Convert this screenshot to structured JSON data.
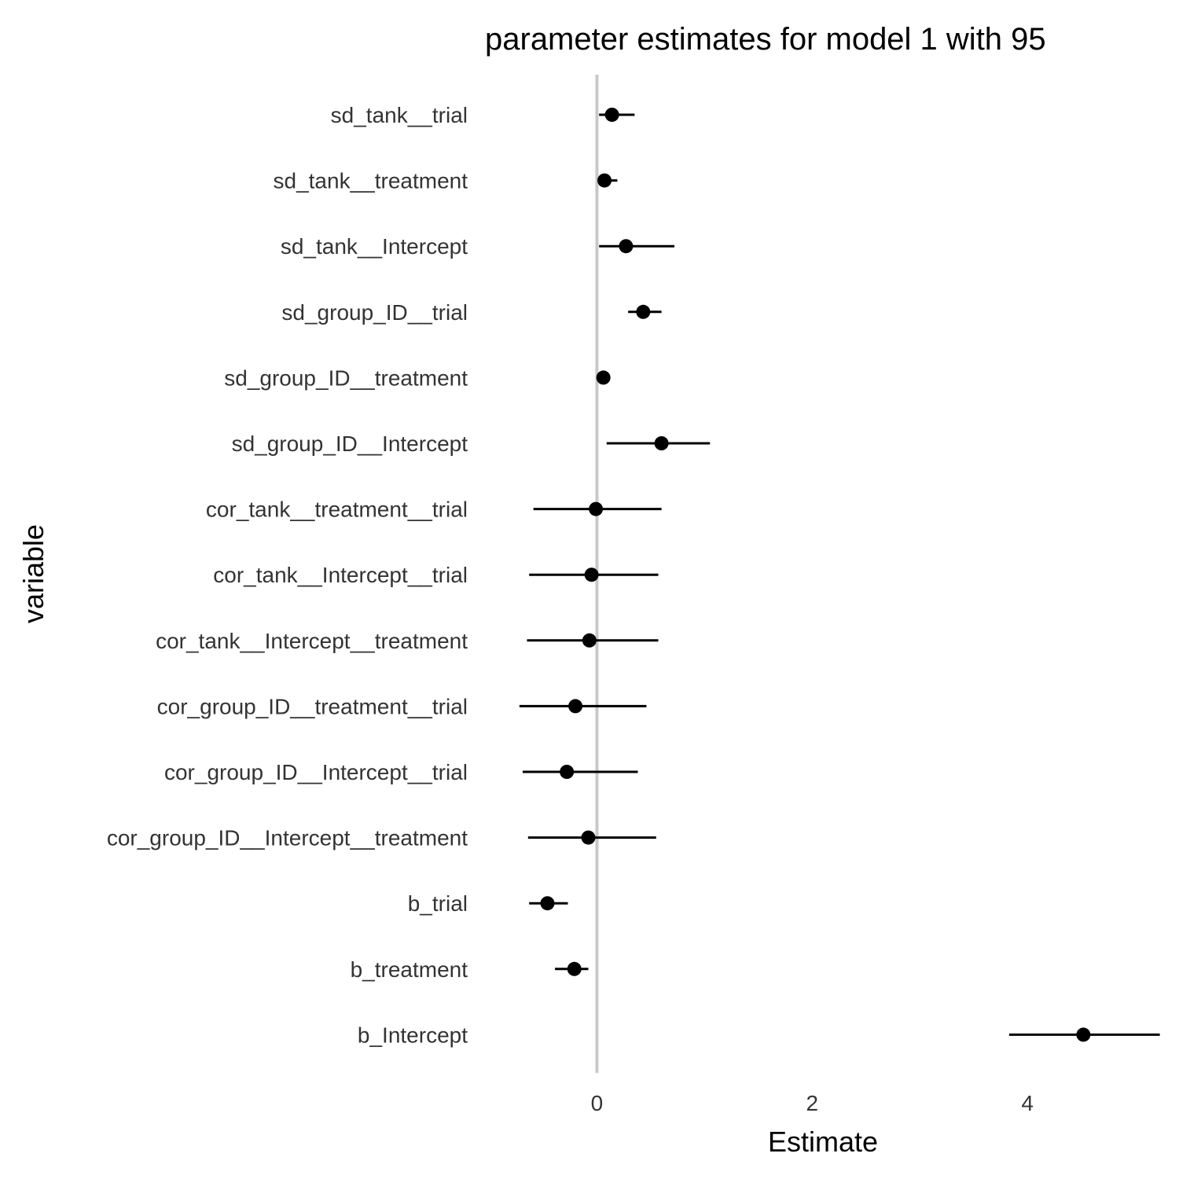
{
  "chart_data": {
    "type": "scatter",
    "title": "parameter estimates for model 1 with 95",
    "xlabel": "Estimate",
    "ylabel": "variable",
    "xlim": [
      -1.15,
      5.35
    ],
    "xticks": [
      0,
      2,
      4
    ],
    "reference_line": 0,
    "grid": false,
    "points": [
      {
        "label": "sd_tank__trial",
        "estimate": 0.14,
        "lower": 0.02,
        "upper": 0.35
      },
      {
        "label": "sd_tank__treatment",
        "estimate": 0.07,
        "lower": 0.01,
        "upper": 0.19
      },
      {
        "label": "sd_tank__Intercept",
        "estimate": 0.27,
        "lower": 0.02,
        "upper": 0.72
      },
      {
        "label": "sd_group_ID__trial",
        "estimate": 0.43,
        "lower": 0.29,
        "upper": 0.6
      },
      {
        "label": "sd_group_ID__treatment",
        "estimate": 0.06,
        "lower": 0.01,
        "upper": 0.12
      },
      {
        "label": "sd_group_ID__Intercept",
        "estimate": 0.6,
        "lower": 0.09,
        "upper": 1.05
      },
      {
        "label": "cor_tank__treatment__trial",
        "estimate": -0.01,
        "lower": -0.59,
        "upper": 0.6
      },
      {
        "label": "cor_tank__Intercept__trial",
        "estimate": -0.05,
        "lower": -0.63,
        "upper": 0.57
      },
      {
        "label": "cor_tank__Intercept__treatment",
        "estimate": -0.07,
        "lower": -0.65,
        "upper": 0.57
      },
      {
        "label": "cor_group_ID__treatment__trial",
        "estimate": -0.2,
        "lower": -0.72,
        "upper": 0.46
      },
      {
        "label": "cor_group_ID__Intercept__trial",
        "estimate": -0.28,
        "lower": -0.69,
        "upper": 0.38
      },
      {
        "label": "cor_group_ID__Intercept__treatment",
        "estimate": -0.08,
        "lower": -0.64,
        "upper": 0.55
      },
      {
        "label": "b_trial",
        "estimate": -0.46,
        "lower": -0.63,
        "upper": -0.27
      },
      {
        "label": "b_treatment",
        "estimate": -0.21,
        "lower": -0.39,
        "upper": -0.08
      },
      {
        "label": "b_Intercept",
        "estimate": 4.52,
        "lower": 3.83,
        "upper": 5.23
      }
    ]
  }
}
